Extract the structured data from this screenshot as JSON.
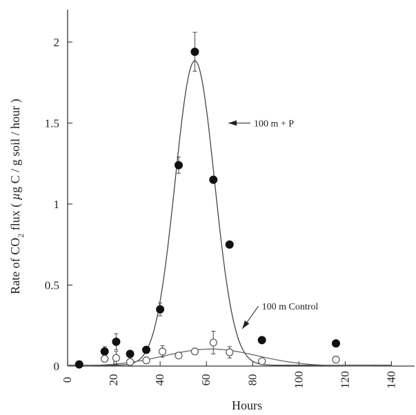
{
  "chart_data": {
    "type": "scatter",
    "title": "",
    "xlabel": "Hours",
    "ylabel": "Rate of CO₂ flux (µg C / g soil / hour)",
    "ylabel_parts": {
      "pre": "Rate of CO",
      "sub": "2",
      "mid": " flux ( ",
      "mu": "µ",
      "post": "g C / g soil / hour )"
    },
    "xlim": [
      0,
      150
    ],
    "ylim": [
      0,
      2.2
    ],
    "xticks": [
      0,
      20,
      40,
      60,
      80,
      100,
      120,
      140
    ],
    "xtick_labels": [
      "0",
      "20",
      "40",
      "60",
      "80",
      "100",
      "120",
      "140"
    ],
    "yticks": [
      0,
      0.5,
      1,
      1.5,
      2
    ],
    "ytick_labels": [
      "0",
      "0.5",
      "1",
      "1.5",
      "2"
    ],
    "grid": false,
    "series": [
      {
        "name": "100 m + P",
        "marker": "filled-circle",
        "color": "#111111",
        "x": [
          5,
          16,
          21,
          27,
          34,
          40,
          48,
          55,
          63,
          70,
          84,
          116
        ],
        "y": [
          0.01,
          0.09,
          0.15,
          0.075,
          0.1,
          0.35,
          1.24,
          1.94,
          1.15,
          0.75,
          0.16,
          0.14
        ],
        "err": [
          0,
          0.03,
          0.05,
          0.02,
          0.02,
          0.04,
          0.05,
          0.12,
          0.02,
          0.02,
          0.01,
          0.01
        ],
        "fit": {
          "type": "gaussian",
          "peak": 1.88,
          "center": 55,
          "sigma": 8.5,
          "baseline": 0.005
        }
      },
      {
        "name": "100 m Control",
        "marker": "open-circle",
        "color": "#555555",
        "x": [
          16,
          21,
          27,
          34,
          41,
          48,
          55,
          63,
          70,
          84,
          116
        ],
        "y": [
          0.045,
          0.05,
          0.025,
          0.035,
          0.09,
          0.065,
          0.09,
          0.145,
          0.085,
          0.03,
          0.04
        ],
        "err": [
          0.02,
          0.04,
          0.02,
          0.02,
          0.035,
          0.015,
          0.02,
          0.07,
          0.035,
          0.015,
          0.02
        ],
        "fit": {
          "type": "gaussian",
          "peak": 0.105,
          "center": 62,
          "sigma": 20,
          "baseline": 0
        }
      }
    ],
    "annotations": [
      {
        "text": "100 m + P",
        "target_series": "100 m + P"
      },
      {
        "text": "100 m Control",
        "target_series": "100 m Control"
      }
    ],
    "annotation_pointers": [
      {
        "from": [
          79,
          1.5
        ],
        "to": [
          69.5,
          1.5
        ]
      },
      {
        "from": [
          82.5,
          0.37
        ],
        "to": [
          75.5,
          0.23
        ]
      }
    ]
  }
}
